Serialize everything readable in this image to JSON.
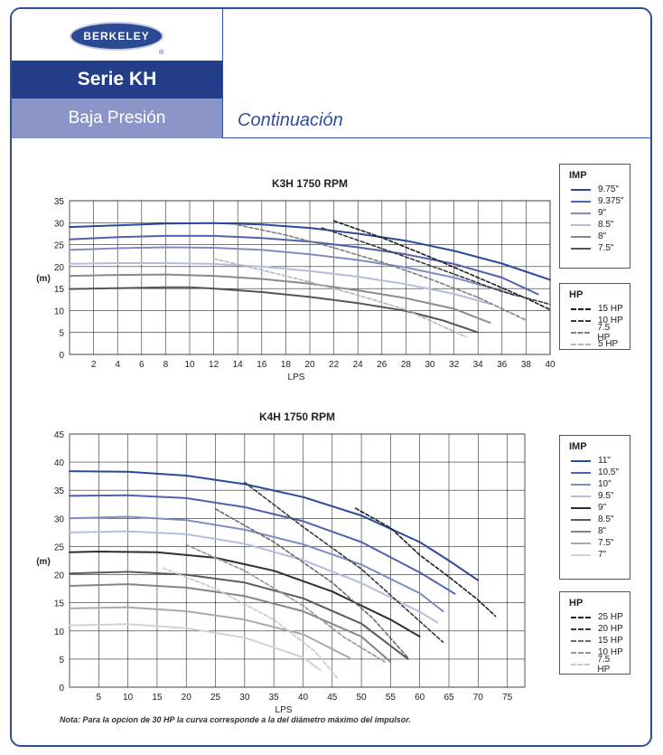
{
  "header": {
    "brand": "BERKELEY",
    "registered": "®",
    "series": "Serie KH",
    "pressure": "Baja Presión",
    "continuation": "Continuación"
  },
  "note": "Nota: Para la opcion de 30 HP la curva corresponde a la del diámetro máximo del impulsor.",
  "legends": {
    "k3h_imp": {
      "title": "IMP",
      "items": [
        {
          "label": "9.75\"",
          "color": "#2a4a9a",
          "dash": false
        },
        {
          "label": "9.375\"",
          "color": "#4f62ae",
          "dash": false
        },
        {
          "label": "9\"",
          "color": "#7d8bc6",
          "dash": false
        },
        {
          "label": "8.5\"",
          "color": "#b4bce0",
          "dash": false
        },
        {
          "label": "8\"",
          "color": "#8a8a8a",
          "dash": false
        },
        {
          "label": "7.5\"",
          "color": "#555555",
          "dash": false
        }
      ]
    },
    "k3h_hp": {
      "title": "HP",
      "items": [
        {
          "label": "15 HP",
          "color": "#1e1e1e",
          "dash": true
        },
        {
          "label": "10 HP",
          "color": "#3a3a3a",
          "dash": true
        },
        {
          "label": "7.5 HP",
          "color": "#808080",
          "dash": true
        },
        {
          "label": "5 HP",
          "color": "#b5b5b5",
          "dash": true
        }
      ]
    },
    "k4h_imp": {
      "title": "IMP",
      "items": [
        {
          "label": "11\"",
          "color": "#2a4a9a",
          "dash": false
        },
        {
          "label": "10.5\"",
          "color": "#4f62ae",
          "dash": false
        },
        {
          "label": "10\"",
          "color": "#7d8bc6",
          "dash": false
        },
        {
          "label": "9.5\"",
          "color": "#b4bce0",
          "dash": false
        },
        {
          "label": "9\"",
          "color": "#2f2f2f",
          "dash": false
        },
        {
          "label": "8.5\"",
          "color": "#5b5b5b",
          "dash": false
        },
        {
          "label": "8\"",
          "color": "#868686",
          "dash": false
        },
        {
          "label": "7.5\"",
          "color": "#aaaaaa",
          "dash": false
        },
        {
          "label": "7\"",
          "color": "#d2d2d2",
          "dash": false
        }
      ]
    },
    "k4h_hp": {
      "title": "HP",
      "items": [
        {
          "label": "25 HP",
          "color": "#1e1e1e",
          "dash": true
        },
        {
          "label": "20 HP",
          "color": "#3a3a3a",
          "dash": true
        },
        {
          "label": "15 HP",
          "color": "#6a6a6a",
          "dash": true
        },
        {
          "label": "10 HP",
          "color": "#969696",
          "dash": true
        },
        {
          "label": "7.5 HP",
          "color": "#c8c8c8",
          "dash": true
        }
      ]
    }
  },
  "chart_data": [
    {
      "type": "line",
      "title": "K3H 1750 RPM",
      "xlabel": "LPS",
      "ylabel": "(m)",
      "xlim": [
        0,
        40
      ],
      "ylim": [
        0,
        35
      ],
      "xticks": [
        2,
        4,
        6,
        8,
        10,
        12,
        14,
        16,
        18,
        20,
        22,
        24,
        26,
        28,
        30,
        32,
        34,
        36,
        38,
        40
      ],
      "yticks": [
        0,
        5,
        10,
        15,
        20,
        25,
        30,
        35
      ],
      "grid": true,
      "series": [
        {
          "name": "9.75\"",
          "color": "#2a4a9a",
          "dash": false,
          "width": 2,
          "points": [
            [
              0,
              29
            ],
            [
              4,
              29.4
            ],
            [
              8,
              29.8
            ],
            [
              12,
              29.9
            ],
            [
              16,
              29.6
            ],
            [
              20,
              28.8
            ],
            [
              24,
              27.5
            ],
            [
              28,
              25.9
            ],
            [
              32,
              23.6
            ],
            [
              36,
              20.7
            ],
            [
              40,
              17
            ]
          ]
        },
        {
          "name": "9.375\"",
          "color": "#4f62ae",
          "dash": false,
          "width": 2,
          "points": [
            [
              0,
              26.2
            ],
            [
              4,
              26.7
            ],
            [
              8,
              27
            ],
            [
              12,
              27
            ],
            [
              16,
              26.5
            ],
            [
              20,
              25.7
            ],
            [
              24,
              24.4
            ],
            [
              28,
              22.8
            ],
            [
              32,
              20.6
            ],
            [
              36,
              17.5
            ],
            [
              39,
              13.7
            ]
          ]
        },
        {
          "name": "9\"",
          "color": "#7d8bc6",
          "dash": false,
          "width": 2,
          "points": [
            [
              0,
              23.8
            ],
            [
              4,
              24.2
            ],
            [
              8,
              24.4
            ],
            [
              12,
              24.3
            ],
            [
              16,
              23.8
            ],
            [
              20,
              22.8
            ],
            [
              24,
              21.5
            ],
            [
              28,
              19.8
            ],
            [
              32,
              17.5
            ],
            [
              36,
              14.5
            ],
            [
              37,
              13.5
            ]
          ]
        },
        {
          "name": "8.5\"",
          "color": "#b4bce0",
          "dash": false,
          "width": 2,
          "points": [
            [
              0,
              20.6
            ],
            [
              4,
              20.8
            ],
            [
              8,
              20.8
            ],
            [
              12,
              20.6
            ],
            [
              16,
              20
            ],
            [
              20,
              19
            ],
            [
              24,
              17.7
            ],
            [
              28,
              16
            ],
            [
              32,
              13.8
            ],
            [
              35,
              11.5
            ]
          ]
        },
        {
          "name": "8\"",
          "color": "#8a8a8a",
          "dash": false,
          "width": 2,
          "points": [
            [
              0,
              17.9
            ],
            [
              4,
              18.1
            ],
            [
              8,
              18.2
            ],
            [
              12,
              17.9
            ],
            [
              16,
              17.2
            ],
            [
              20,
              16.1
            ],
            [
              24,
              14.6
            ],
            [
              28,
              12.8
            ],
            [
              32,
              10.4
            ],
            [
              35,
              7.2
            ]
          ]
        },
        {
          "name": "7.5\"",
          "color": "#555555",
          "dash": false,
          "width": 2,
          "points": [
            [
              0,
              14.9
            ],
            [
              4,
              15.1
            ],
            [
              8,
              15.3
            ],
            [
              10,
              15.3
            ],
            [
              12,
              15
            ],
            [
              16,
              14.2
            ],
            [
              20,
              13.1
            ],
            [
              24,
              11.7
            ],
            [
              28,
              9.9
            ],
            [
              31,
              7.8
            ],
            [
              34,
              5
            ]
          ]
        },
        {
          "name": "15 HP",
          "color": "#1e1e1e",
          "dash": true,
          "width": 1.6,
          "points": [
            [
              22,
              30.4
            ],
            [
              26,
              26.6
            ],
            [
              30,
              22.2
            ],
            [
              34,
              17.5
            ],
            [
              38,
              12.8
            ],
            [
              40,
              10.2
            ]
          ]
        },
        {
          "name": "10 HP",
          "color": "#3a3a3a",
          "dash": true,
          "width": 1.6,
          "points": [
            [
              21,
              28.8
            ],
            [
              24,
              26
            ],
            [
              28,
              22.2
            ],
            [
              32,
              18.3
            ],
            [
              36,
              14.3
            ],
            [
              40,
              11.4
            ]
          ]
        },
        {
          "name": "7.5 HP",
          "color": "#808080",
          "dash": true,
          "width": 1.6,
          "points": [
            [
              14,
              29.5
            ],
            [
              18,
              27.2
            ],
            [
              22,
              24.3
            ],
            [
              26,
              21
            ],
            [
              30,
              17.2
            ],
            [
              34,
              13
            ],
            [
              38,
              7.8
            ]
          ]
        },
        {
          "name": "5 HP",
          "color": "#b5b5b5",
          "dash": true,
          "width": 1.6,
          "points": [
            [
              12,
              21.8
            ],
            [
              16,
              19.2
            ],
            [
              20,
              16.5
            ],
            [
              24,
              13.5
            ],
            [
              28,
              10.2
            ],
            [
              33,
              4
            ]
          ]
        }
      ]
    },
    {
      "type": "line",
      "title": "K4H 1750 RPM",
      "xlabel": "LPS",
      "ylabel": "(m)",
      "xlim": [
        0,
        78
      ],
      "ylim": [
        0,
        45
      ],
      "xticks": [
        5,
        10,
        15,
        20,
        25,
        30,
        35,
        40,
        45,
        50,
        55,
        60,
        65,
        70,
        75
      ],
      "yticks": [
        0,
        5,
        10,
        15,
        20,
        25,
        30,
        35,
        40,
        45
      ],
      "grid": true,
      "series": [
        {
          "name": "11\"",
          "color": "#2a4a9a",
          "dash": false,
          "width": 2,
          "points": [
            [
              0,
              38.4
            ],
            [
              10,
              38.3
            ],
            [
              20,
              37.6
            ],
            [
              30,
              36.1
            ],
            [
              40,
              33.8
            ],
            [
              50,
              30.5
            ],
            [
              60,
              25.8
            ],
            [
              65,
              22.5
            ],
            [
              70,
              19
            ]
          ]
        },
        {
          "name": "10.5\"",
          "color": "#4f62ae",
          "dash": false,
          "width": 2,
          "points": [
            [
              0,
              34
            ],
            [
              10,
              34.1
            ],
            [
              20,
              33.6
            ],
            [
              30,
              32
            ],
            [
              40,
              29.5
            ],
            [
              50,
              25.8
            ],
            [
              60,
              20.4
            ],
            [
              66,
              16.6
            ]
          ]
        },
        {
          "name": "10\"",
          "color": "#7d8bc6",
          "dash": false,
          "width": 2,
          "points": [
            [
              0,
              30
            ],
            [
              10,
              30.3
            ],
            [
              20,
              29.7
            ],
            [
              30,
              28
            ],
            [
              40,
              25.4
            ],
            [
              50,
              21.8
            ],
            [
              60,
              16.7
            ],
            [
              64,
              13.5
            ]
          ]
        },
        {
          "name": "9.5\"",
          "color": "#b4bce0",
          "dash": false,
          "width": 2,
          "points": [
            [
              0,
              27.5
            ],
            [
              10,
              27.7
            ],
            [
              20,
              27.2
            ],
            [
              30,
              25.5
            ],
            [
              40,
              22.6
            ],
            [
              50,
              18.5
            ],
            [
              60,
              13.4
            ],
            [
              63,
              11.5
            ]
          ]
        },
        {
          "name": "9\"",
          "color": "#2f2f2f",
          "dash": false,
          "width": 2,
          "points": [
            [
              0,
              24
            ],
            [
              5,
              24.1
            ],
            [
              15,
              24
            ],
            [
              25,
              23
            ],
            [
              35,
              20.7
            ],
            [
              45,
              17
            ],
            [
              55,
              12
            ],
            [
              60,
              9
            ]
          ]
        },
        {
          "name": "8.5\"",
          "color": "#5b5b5b",
          "dash": false,
          "width": 2,
          "points": [
            [
              0,
              20.2
            ],
            [
              10,
              20.5
            ],
            [
              20,
              20
            ],
            [
              30,
              18.6
            ],
            [
              40,
              15.8
            ],
            [
              50,
              11.3
            ],
            [
              58,
              5
            ]
          ]
        },
        {
          "name": "8\"",
          "color": "#868686",
          "dash": false,
          "width": 2,
          "points": [
            [
              0,
              18
            ],
            [
              10,
              18.3
            ],
            [
              20,
              17.7
            ],
            [
              30,
              16.2
            ],
            [
              40,
              13.5
            ],
            [
              50,
              9
            ],
            [
              55,
              4.5
            ]
          ]
        },
        {
          "name": "7.5\"",
          "color": "#aaaaaa",
          "dash": false,
          "width": 2,
          "points": [
            [
              0,
              14
            ],
            [
              10,
              14.2
            ],
            [
              20,
              13.5
            ],
            [
              30,
              12
            ],
            [
              40,
              9.4
            ],
            [
              48,
              5.2
            ]
          ]
        },
        {
          "name": "7\"",
          "color": "#d2d2d2",
          "dash": false,
          "width": 2,
          "points": [
            [
              0,
              11
            ],
            [
              10,
              11.2
            ],
            [
              20,
              10.5
            ],
            [
              30,
              8.8
            ],
            [
              40,
              5.3
            ],
            [
              43,
              3
            ]
          ]
        },
        {
          "name": "25 HP",
          "color": "#1e1e1e",
          "dash": true,
          "width": 1.6,
          "points": [
            [
              49,
              31.8
            ],
            [
              55,
              28.3
            ],
            [
              60,
              23.5
            ],
            [
              65,
              19.6
            ],
            [
              70,
              15.5
            ],
            [
              73,
              12.6
            ]
          ]
        },
        {
          "name": "20 HP",
          "color": "#3a3a3a",
          "dash": true,
          "width": 1.6,
          "points": [
            [
              30,
              36.4
            ],
            [
              40,
              28.5
            ],
            [
              50,
              21
            ],
            [
              57,
              14.5
            ],
            [
              64,
              8
            ]
          ]
        },
        {
          "name": "15 HP",
          "color": "#6a6a6a",
          "dash": true,
          "width": 1.6,
          "points": [
            [
              25,
              31.7
            ],
            [
              35,
              25.8
            ],
            [
              45,
              18.6
            ],
            [
              52,
              12.2
            ],
            [
              58,
              5.2
            ]
          ]
        },
        {
          "name": "10 HP",
          "color": "#969696",
          "dash": true,
          "width": 1.6,
          "points": [
            [
              20,
              25.3
            ],
            [
              30,
              20.7
            ],
            [
              40,
              14.5
            ],
            [
              47,
              8.9
            ],
            [
              54,
              4.5
            ]
          ]
        },
        {
          "name": "7.5 HP",
          "color": "#c8c8c8",
          "dash": true,
          "width": 1.6,
          "points": [
            [
              16,
              21.2
            ],
            [
              25,
              17.5
            ],
            [
              35,
              12
            ],
            [
              42,
              6.4
            ],
            [
              46,
              1.5
            ]
          ]
        }
      ]
    }
  ]
}
